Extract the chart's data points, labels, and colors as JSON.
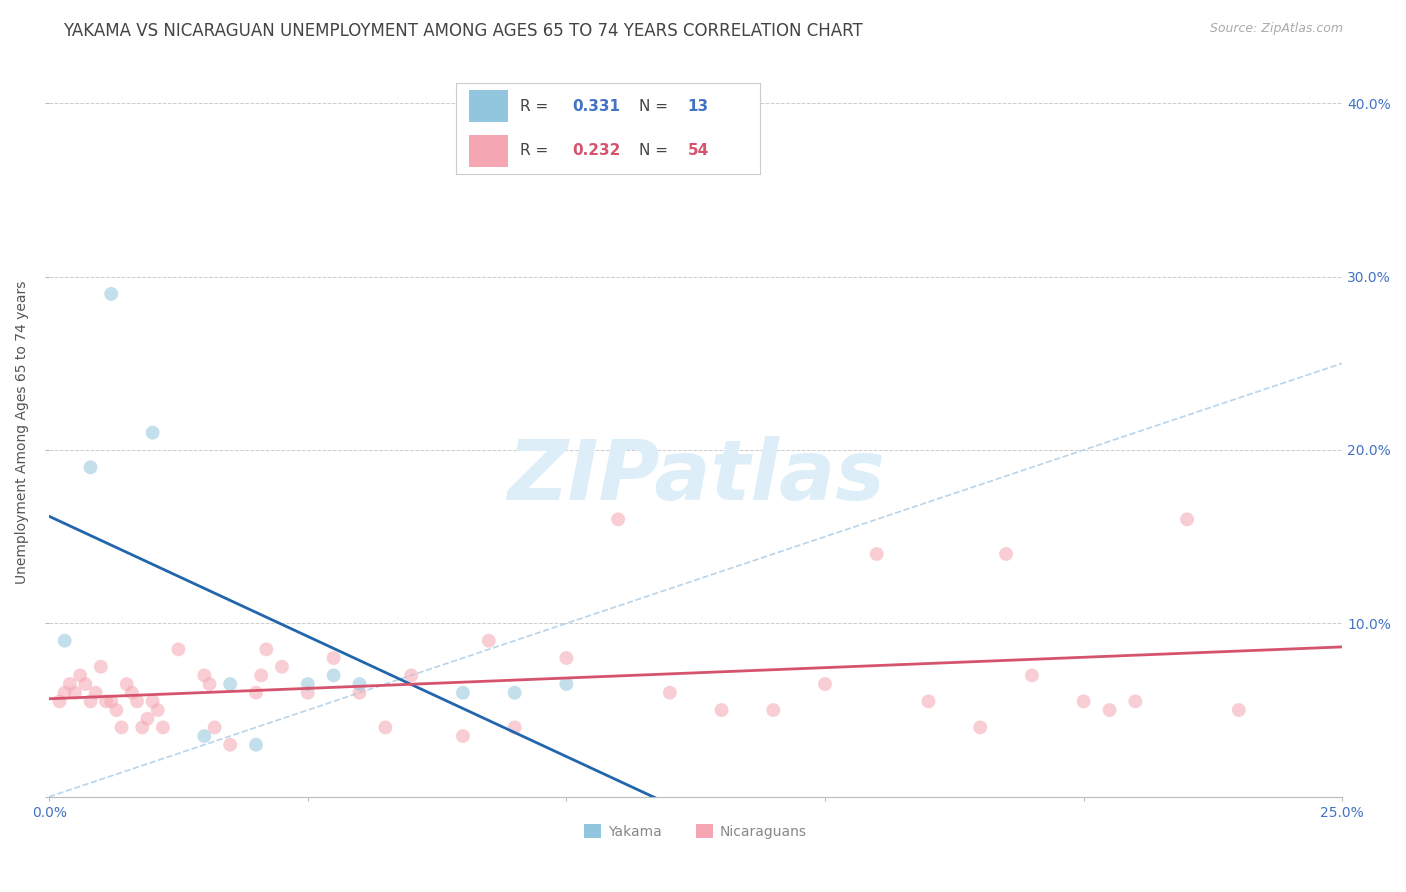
{
  "title": "YAKAMA VS NICARAGUAN UNEMPLOYMENT AMONG AGES 65 TO 74 YEARS CORRELATION CHART",
  "source": "Source: ZipAtlas.com",
  "ylabel": "Unemployment Among Ages 65 to 74 years",
  "xlim": [
    0.0,
    0.25
  ],
  "ylim": [
    0.0,
    0.42
  ],
  "xticks": [
    0.0,
    0.05,
    0.1,
    0.15,
    0.2,
    0.25
  ],
  "yticks": [
    0.0,
    0.1,
    0.2,
    0.3,
    0.4
  ],
  "ytick_labels": [
    "",
    "10.0%",
    "20.0%",
    "30.0%",
    "40.0%"
  ],
  "xtick_labels": [
    "0.0%",
    "",
    "",
    "",
    "",
    "25.0%"
  ],
  "yakama_R": 0.331,
  "yakama_N": 13,
  "nicaraguan_R": 0.232,
  "nicaraguan_N": 54,
  "yakama_color": "#92c5de",
  "nicaraguan_color": "#f4a6b2",
  "yakama_line_color": "#2166ac",
  "nicaraguan_line_color": "#d6536d",
  "diagonal_color": "#b8d4ea",
  "background_color": "#ffffff",
  "grid_color": "#cccccc",
  "title_color": "#444444",
  "axis_label_color": "#555555",
  "tick_color": "#4472c4",
  "watermark_text": "ZIPatlas",
  "watermark_color": "#ddeef8",
  "yakama_x": [
    0.003,
    0.008,
    0.012,
    0.02,
    0.03,
    0.035,
    0.04,
    0.05,
    0.055,
    0.06,
    0.08,
    0.09,
    0.1
  ],
  "yakama_y": [
    0.09,
    0.19,
    0.29,
    0.21,
    0.035,
    0.065,
    0.03,
    0.065,
    0.07,
    0.065,
    0.06,
    0.06,
    0.065
  ],
  "nicaraguan_x": [
    0.002,
    0.003,
    0.004,
    0.005,
    0.006,
    0.007,
    0.008,
    0.009,
    0.01,
    0.011,
    0.012,
    0.013,
    0.014,
    0.015,
    0.016,
    0.017,
    0.018,
    0.019,
    0.02,
    0.021,
    0.022,
    0.025,
    0.03,
    0.031,
    0.032,
    0.035,
    0.04,
    0.041,
    0.042,
    0.045,
    0.05,
    0.055,
    0.06,
    0.065,
    0.07,
    0.08,
    0.085,
    0.09,
    0.1,
    0.11,
    0.12,
    0.13,
    0.14,
    0.15,
    0.16,
    0.17,
    0.18,
    0.185,
    0.19,
    0.2,
    0.205,
    0.21,
    0.22,
    0.23
  ],
  "nicaraguan_y": [
    0.055,
    0.06,
    0.065,
    0.06,
    0.07,
    0.065,
    0.055,
    0.06,
    0.075,
    0.055,
    0.055,
    0.05,
    0.04,
    0.065,
    0.06,
    0.055,
    0.04,
    0.045,
    0.055,
    0.05,
    0.04,
    0.085,
    0.07,
    0.065,
    0.04,
    0.03,
    0.06,
    0.07,
    0.085,
    0.075,
    0.06,
    0.08,
    0.06,
    0.04,
    0.07,
    0.035,
    0.09,
    0.04,
    0.08,
    0.16,
    0.06,
    0.05,
    0.05,
    0.065,
    0.14,
    0.055,
    0.04,
    0.14,
    0.07,
    0.055,
    0.05,
    0.055,
    0.16,
    0.05
  ],
  "marker_size": 100,
  "marker_alpha": 0.55,
  "title_fontsize": 12,
  "source_fontsize": 9,
  "legend_fontsize": 11,
  "axis_fontsize": 10,
  "tick_fontsize": 10
}
